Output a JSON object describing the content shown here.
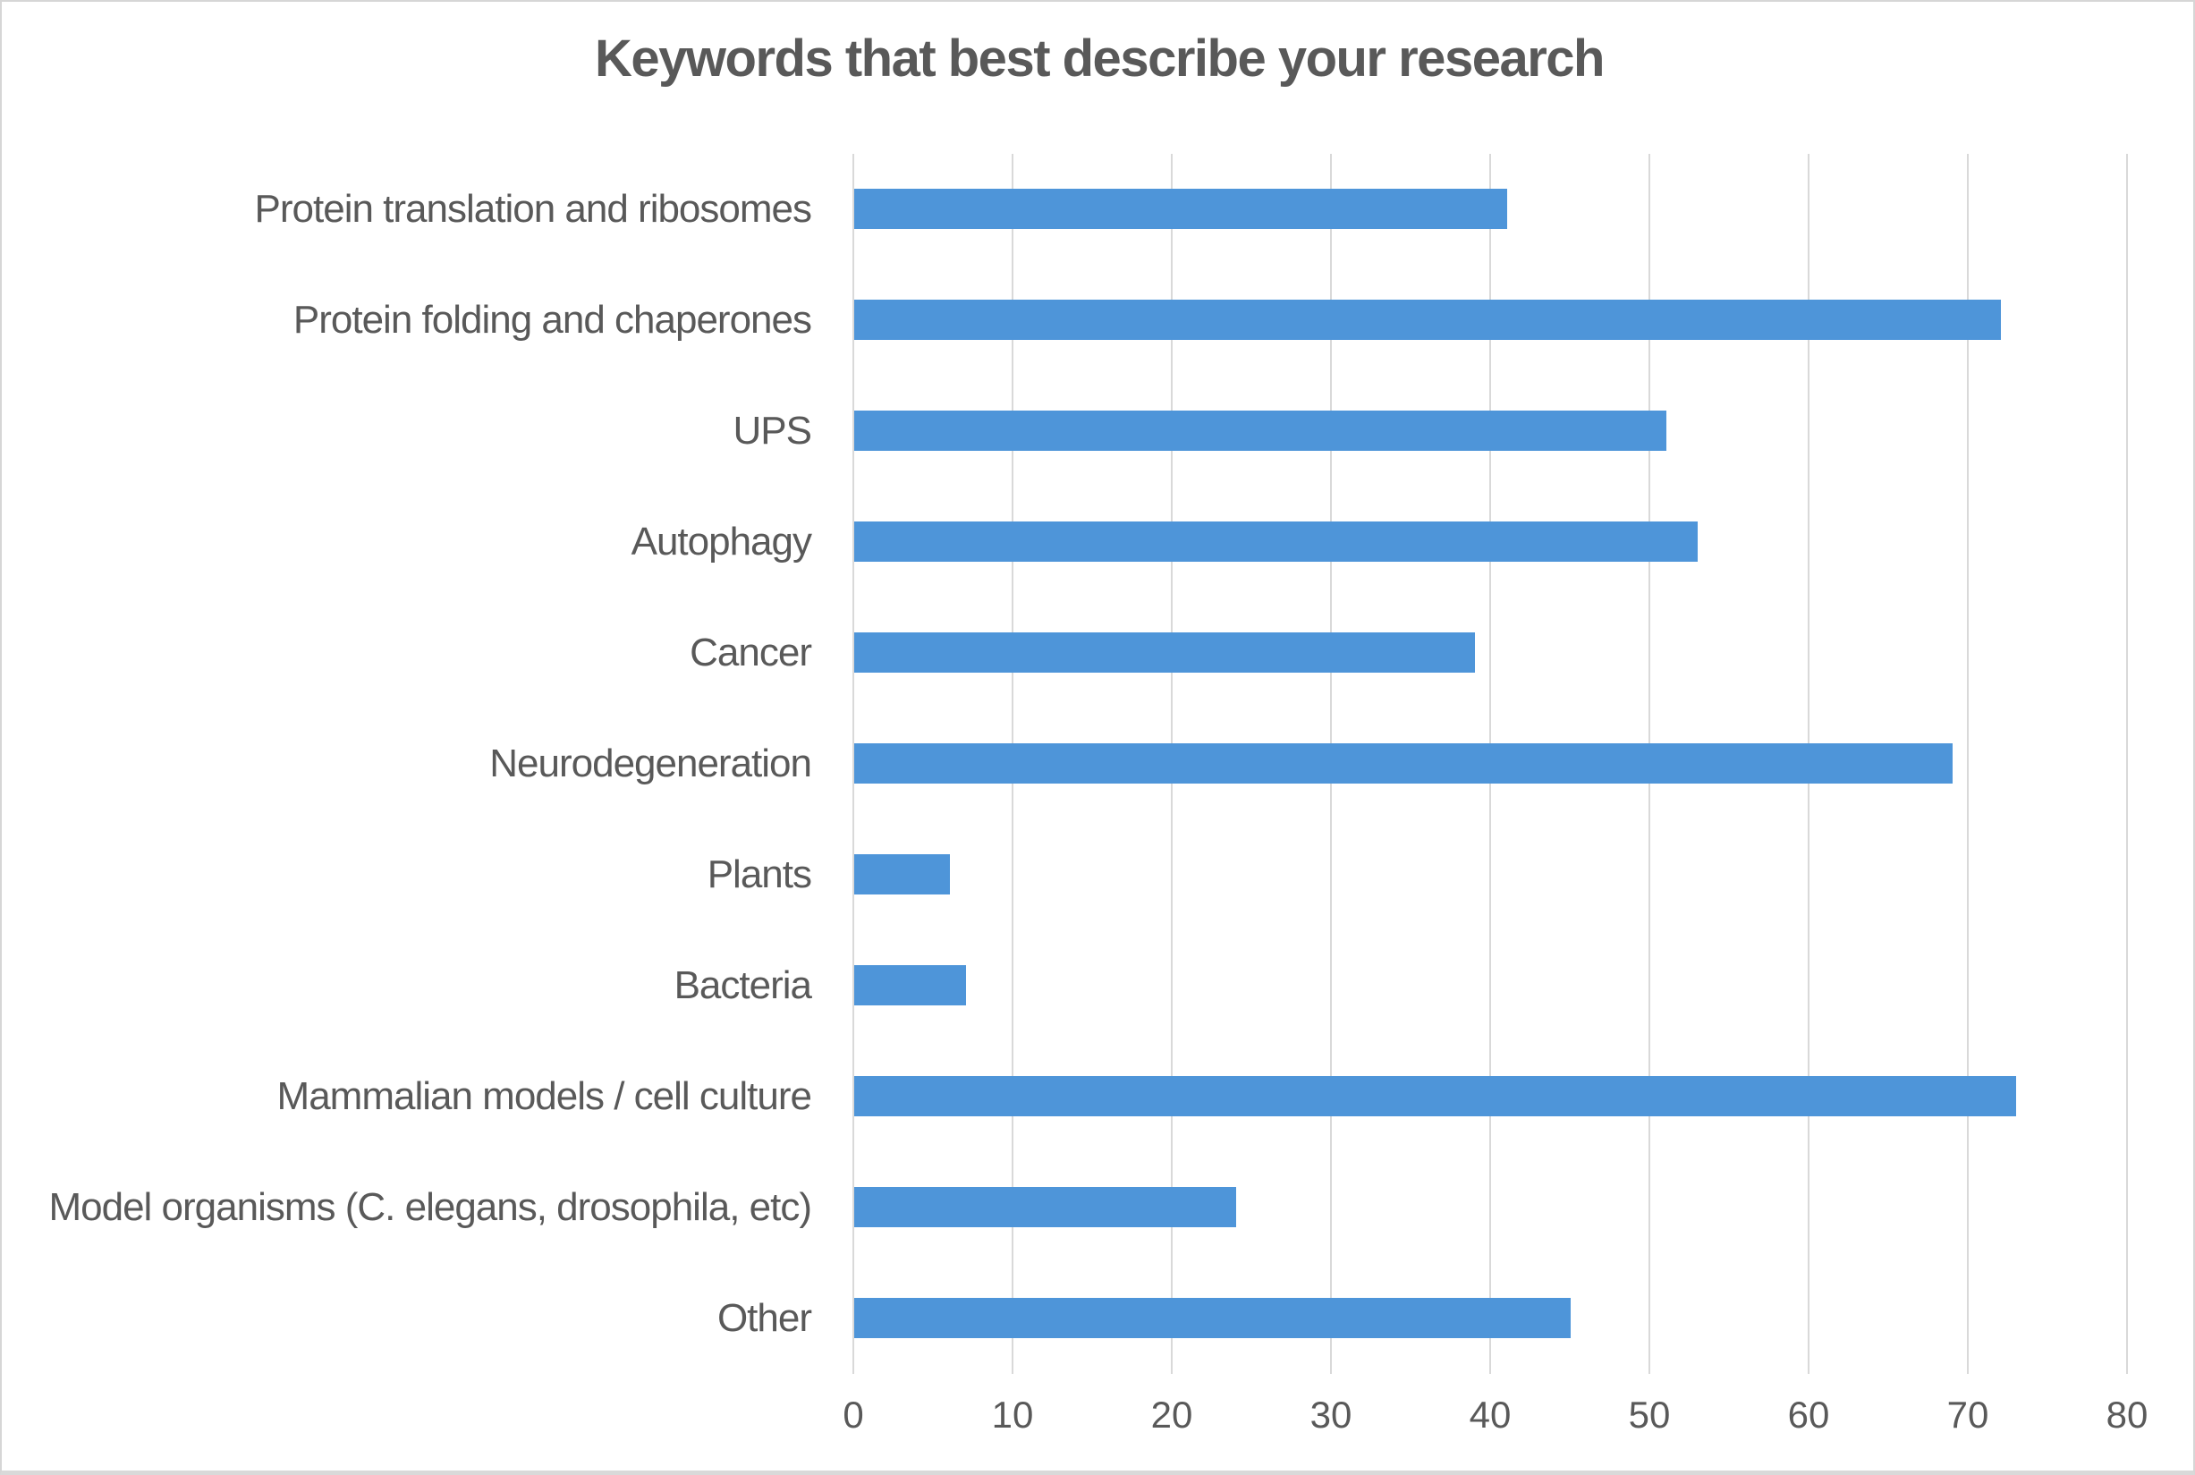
{
  "chart_data": {
    "type": "bar",
    "orientation": "horizontal",
    "title": "Keywords that best describe your research",
    "categories": [
      "Protein translation and ribosomes",
      "Protein folding and chaperones",
      "UPS",
      "Autophagy",
      "Cancer",
      "Neurodegeneration",
      "Plants",
      "Bacteria",
      "Mammalian models / cell culture",
      "Model organisms (C. elegans, drosophila, etc)",
      "Other"
    ],
    "values": [
      41,
      72,
      51,
      53,
      39,
      69,
      6,
      7,
      73,
      24,
      45
    ],
    "xlabel": "",
    "ylabel": "",
    "xlim": [
      0,
      80
    ],
    "xticks": [
      "0",
      "10",
      "20",
      "30",
      "40",
      "50",
      "60",
      "70",
      "80"
    ],
    "grid": true,
    "legend": false,
    "bar_color": "#4E95D9",
    "gridline_color": "#D9D9D9",
    "text_color": "#595959",
    "background_color": "#FFFFFF"
  }
}
